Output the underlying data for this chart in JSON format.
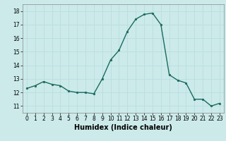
{
  "x": [
    0,
    1,
    2,
    3,
    4,
    5,
    6,
    7,
    8,
    9,
    10,
    11,
    12,
    13,
    14,
    15,
    16,
    17,
    18,
    19,
    20,
    21,
    22,
    23
  ],
  "y": [
    12.3,
    12.5,
    12.8,
    12.6,
    12.5,
    12.1,
    12.0,
    12.0,
    11.9,
    13.0,
    14.4,
    15.1,
    16.5,
    17.4,
    17.75,
    17.85,
    17.0,
    13.3,
    12.9,
    12.7,
    11.5,
    11.5,
    11.0,
    11.2
  ],
  "line_color": "#1a6b5e",
  "marker": "o",
  "marker_size": 1.8,
  "linewidth": 1.0,
  "xlabel": "Humidex (Indice chaleur)",
  "xlabel_fontsize": 7,
  "ylim": [
    10.5,
    18.5
  ],
  "xlim": [
    -0.5,
    23.5
  ],
  "yticks": [
    11,
    12,
    13,
    14,
    15,
    16,
    17,
    18
  ],
  "xticks": [
    0,
    1,
    2,
    3,
    4,
    5,
    6,
    7,
    8,
    9,
    10,
    11,
    12,
    13,
    14,
    15,
    16,
    17,
    18,
    19,
    20,
    21,
    22,
    23
  ],
  "grid_color": "#b8dede",
  "bg_color": "#cceaea",
  "tick_fontsize": 5.5,
  "spine_color": "#888888"
}
